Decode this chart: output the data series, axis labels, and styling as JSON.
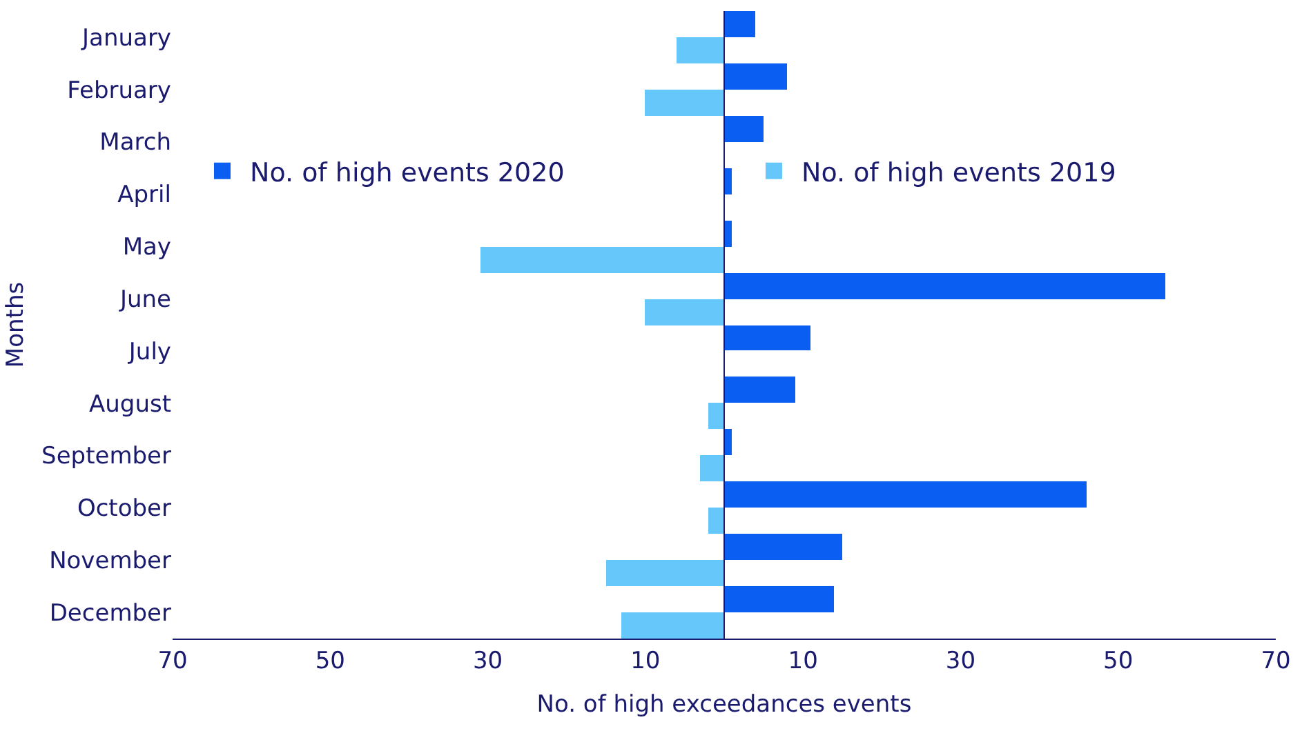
{
  "chart_data": {
    "type": "bar",
    "orientation": "horizontal",
    "xlabel": "No. of high exceedances events",
    "ylabel": "Months",
    "categories": [
      "January",
      "February",
      "March",
      "April",
      "May",
      "June",
      "July",
      "August",
      "September",
      "October",
      "November",
      "December"
    ],
    "series": [
      {
        "name": "No. of high events 2020",
        "color": "#0b5ef2",
        "values": [
          4,
          8,
          5,
          1,
          1,
          56,
          11,
          9,
          1,
          46,
          15,
          14
        ]
      },
      {
        "name": "No. of high events 2019",
        "color": "#66c8fa",
        "values": [
          -6,
          -10,
          0,
          0,
          -31,
          -10,
          0,
          -2,
          -3,
          -2,
          -15,
          -13
        ]
      }
    ],
    "xlim": [
      -70,
      70
    ],
    "xticks": [
      {
        "value": -70,
        "label": "70"
      },
      {
        "value": -50,
        "label": "50"
      },
      {
        "value": -30,
        "label": "30"
      },
      {
        "value": -10,
        "label": "10"
      },
      {
        "value": 10,
        "label": "10"
      },
      {
        "value": 30,
        "label": "30"
      },
      {
        "value": 50,
        "label": "50"
      },
      {
        "value": 70,
        "label": "70"
      }
    ],
    "ref_lines": [
      {
        "axis": "x",
        "value": 0,
        "color": "#1a1a6e"
      }
    ],
    "legend": "top"
  }
}
